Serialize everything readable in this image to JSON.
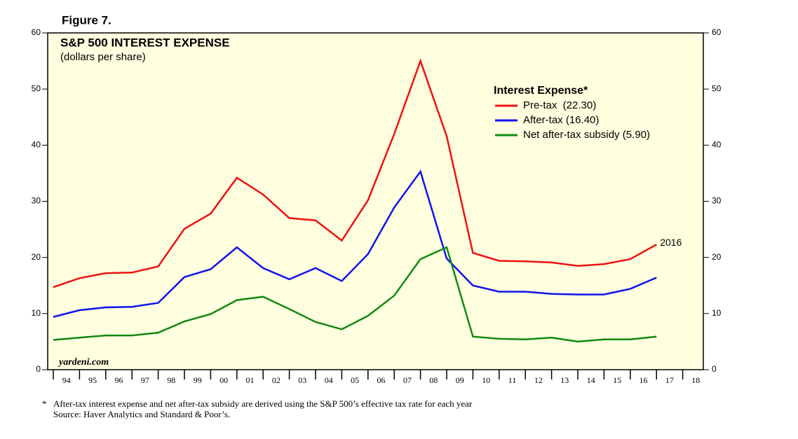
{
  "chart_data": {
    "type": "line",
    "figure_label": "Figure 7.",
    "title": "S&P 500 INTEREST EXPENSE",
    "subtitle": "(dollars per share)",
    "legend_title": "Interest Expense*",
    "legend_position": "upper right",
    "watermark": "yardeni.com",
    "annotation": "2016",
    "footnote_marker": "*",
    "footnote": "After-tax interest expense and net after-tax subsidy are derived using the S&P 500’s effective tax rate for each year",
    "source": "Source: Haver Analytics and Standard & Poor’s.",
    "categories": [
      "94",
      "95",
      "96",
      "97",
      "98",
      "99",
      "00",
      "01",
      "02",
      "03",
      "04",
      "05",
      "06",
      "07",
      "08",
      "09",
      "10",
      "11",
      "12",
      "13",
      "14",
      "15",
      "16",
      "17",
      "18"
    ],
    "series": [
      {
        "name": "Pre-tax  (22.30)",
        "color": "#ee1111",
        "values": [
          14.7,
          16.3,
          17.2,
          17.3,
          18.4,
          25.1,
          27.8,
          34.2,
          31.2,
          27.0,
          26.6,
          23.0,
          30.2,
          42.0,
          55.0,
          41.6,
          20.8,
          19.4,
          19.3,
          19.1,
          18.5,
          18.8,
          19.7,
          22.3,
          null
        ]
      },
      {
        "name": "After-tax (16.40)",
        "color": "#1111ee",
        "values": [
          9.4,
          10.6,
          11.1,
          11.2,
          11.9,
          16.5,
          17.9,
          21.8,
          18.1,
          16.1,
          18.1,
          15.8,
          20.6,
          28.9,
          35.3,
          19.8,
          15.0,
          13.9,
          13.9,
          13.5,
          13.4,
          13.4,
          14.4,
          16.4,
          null
        ]
      },
      {
        "name": "Net after-tax subsidy (5.90)",
        "color": "#118811",
        "values": [
          5.3,
          5.7,
          6.1,
          6.1,
          6.6,
          8.6,
          9.9,
          12.4,
          13.0,
          10.8,
          8.5,
          7.2,
          9.6,
          13.2,
          19.7,
          21.8,
          5.9,
          5.5,
          5.4,
          5.7,
          5.0,
          5.4,
          5.4,
          5.9,
          null
        ]
      }
    ],
    "ylim": [
      0,
      60
    ],
    "yticks": [
      0,
      10,
      20,
      30,
      40,
      50,
      60
    ],
    "background": "#ffffe0"
  }
}
